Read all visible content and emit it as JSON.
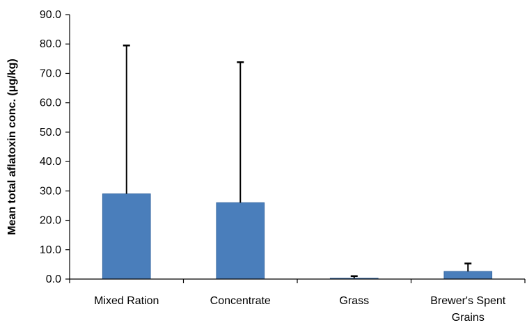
{
  "chart_data": {
    "type": "bar",
    "title": "",
    "xlabel": "",
    "ylabel": "Mean total aflatoxin conc. (μg/kg)",
    "categories": [
      [
        "Mixed Ration"
      ],
      [
        "Concentrate"
      ],
      [
        "Grass"
      ],
      [
        "Brewer's Spent",
        "Grains"
      ]
    ],
    "values": [
      29.0,
      26.0,
      0.3,
      2.6
    ],
    "error_upper": [
      79.5,
      73.8,
      1.0,
      5.3
    ],
    "ylim": [
      0,
      90
    ],
    "yticks": [
      "0.0",
      "10.0",
      "20.0",
      "30.0",
      "40.0",
      "50.0",
      "60.0",
      "70.0",
      "80.0",
      "90.0"
    ],
    "grid": false,
    "legend": "none",
    "bar_color": "#4a7ebb",
    "bar_border": "#3a6aa3",
    "errorbar_color": "#000000"
  }
}
